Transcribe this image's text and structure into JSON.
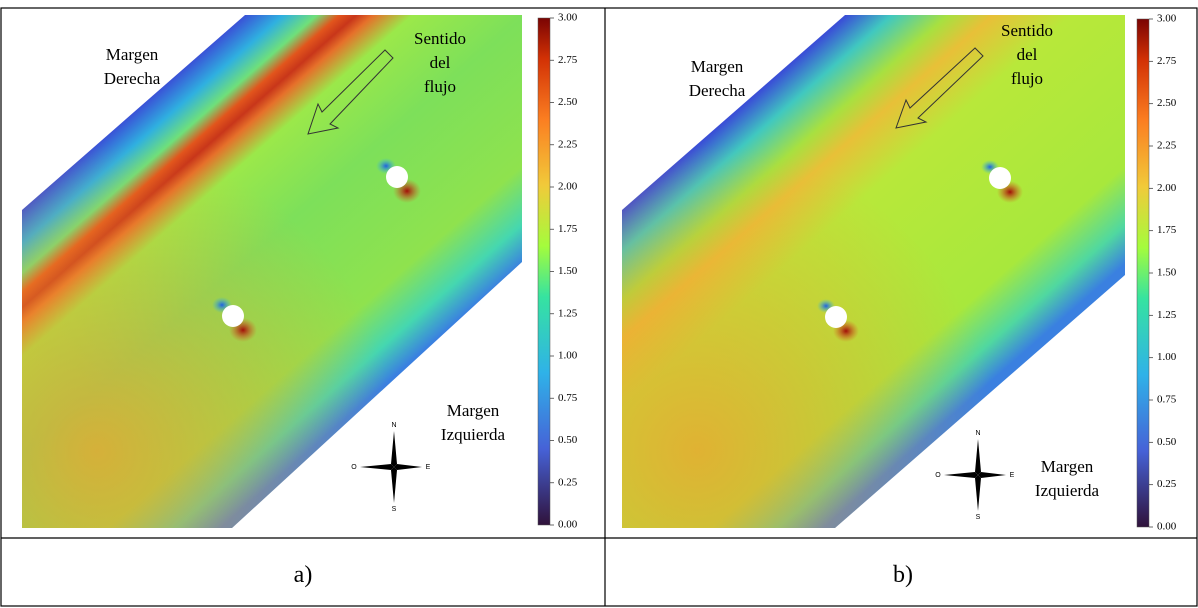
{
  "panels": [
    {
      "caption": "a)",
      "right_bank": [
        "Margen",
        "Derecha"
      ],
      "flow_direction": [
        "Sentido",
        "del",
        "flujo"
      ],
      "left_bank": [
        "Margen",
        "Izquierda"
      ],
      "compass": {
        "north": "N",
        "west": "O",
        "east": "E",
        "south": "S"
      },
      "colorbar": {
        "range": [
          0,
          3
        ],
        "ticks": [
          {
            "value": 0,
            "label": "0.00"
          },
          {
            "value": 0.25,
            "label": "0.25"
          },
          {
            "value": 0.5,
            "label": "0.50"
          },
          {
            "value": 0.75,
            "label": "0.75"
          },
          {
            "value": 1,
            "label": "1.00"
          },
          {
            "value": 1.25,
            "label": "1.25"
          },
          {
            "value": 1.5,
            "label": "1.50"
          },
          {
            "value": 1.75,
            "label": "1.75"
          },
          {
            "value": 2,
            "label": "2.00"
          },
          {
            "value": 2.25,
            "label": "2.25"
          },
          {
            "value": 2.5,
            "label": "2.50"
          },
          {
            "value": 2.75,
            "label": "2.75"
          },
          {
            "value": 3,
            "label": "3.00"
          }
        ]
      }
    },
    {
      "caption": "b)",
      "right_bank": [
        "Margen",
        "Derecha"
      ],
      "flow_direction": [
        "Sentido",
        "del",
        "flujo"
      ],
      "left_bank": [
        "Margen",
        "Izquierda"
      ],
      "compass": {
        "north": "N",
        "west": "O",
        "east": "E",
        "south": "S"
      },
      "colorbar": {
        "range": [
          0,
          3
        ],
        "ticks": [
          {
            "value": 0,
            "label": "0.00"
          },
          {
            "value": 0.25,
            "label": "0.25"
          },
          {
            "value": 0.5,
            "label": "0.50"
          },
          {
            "value": 0.75,
            "label": "0.75"
          },
          {
            "value": 1,
            "label": "1.00"
          },
          {
            "value": 1.25,
            "label": "1.25"
          },
          {
            "value": 1.5,
            "label": "1.50"
          },
          {
            "value": 1.75,
            "label": "1.75"
          },
          {
            "value": 2,
            "label": "2.00"
          },
          {
            "value": 2.25,
            "label": "2.25"
          },
          {
            "value": 2.5,
            "label": "2.50"
          },
          {
            "value": 2.75,
            "label": "2.75"
          },
          {
            "value": 3,
            "label": "3.00"
          }
        ]
      }
    }
  ]
}
